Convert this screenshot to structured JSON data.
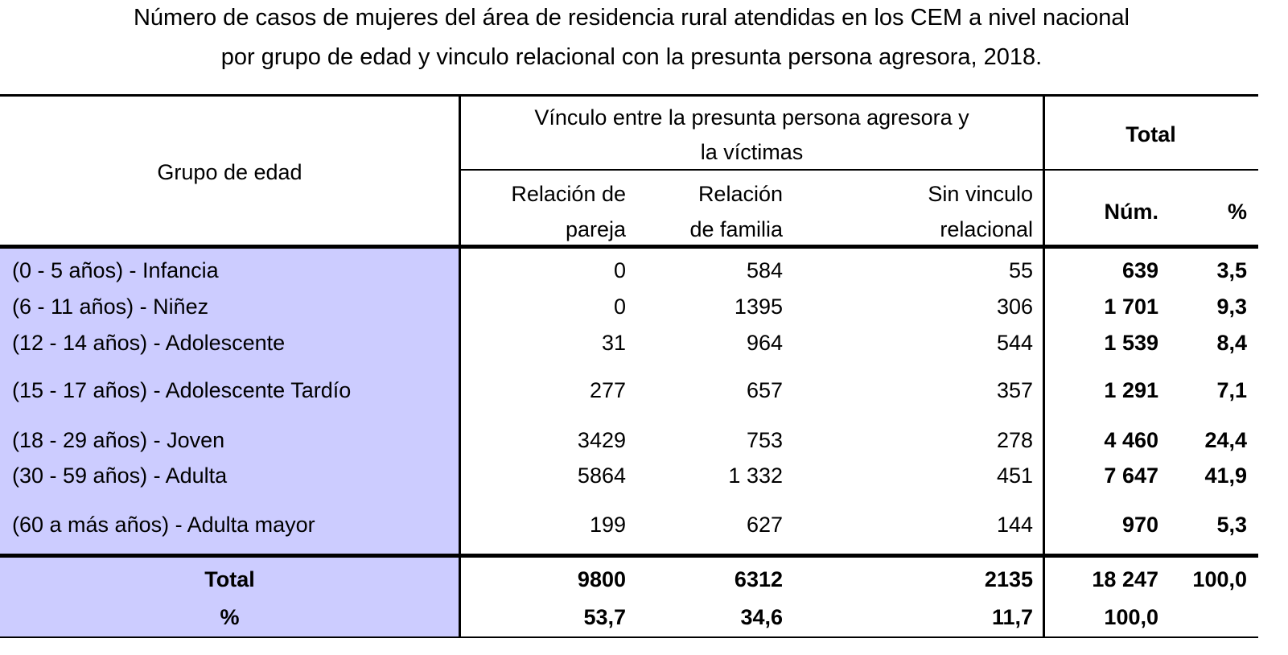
{
  "title_line1": "Número de casos de mujeres del área de residencia rural atendidas en los CEM a nivel nacional",
  "title_line2": "por grupo de edad y vinculo relacional con la presunta persona agresora, 2018.",
  "colors": {
    "row_header_fill": "#ccccff",
    "lines": "#000000"
  },
  "chart_data": {
    "type": "table",
    "header": {
      "group": "Grupo de edad",
      "vinculo_line1": "Vínculo entre la presunta persona agresora y",
      "vinculo_line2": "la víctimas",
      "total": "Total",
      "col_pareja_1": "Relación de",
      "col_pareja_2": "pareja",
      "col_familia_1": "Relación",
      "col_familia_2": "de familia",
      "col_sin_1": "Sin vinculo",
      "col_sin_2": "relacional",
      "col_num": "Núm.",
      "col_pct": "%"
    },
    "rows": [
      {
        "group": "(0 - 5 años) - Infancia",
        "pareja": "0",
        "familia": "584",
        "sin": "55",
        "num": "639",
        "pct": "3,5"
      },
      {
        "group": "(6 - 11 años) - Niñez",
        "pareja": "0",
        "familia": "1395",
        "sin": "306",
        "num": "1 701",
        "pct": "9,3"
      },
      {
        "group": "(12 - 14 años) - Adolescente",
        "pareja": "31",
        "familia": "964",
        "sin": "544",
        "num": "1 539",
        "pct": "8,4"
      },
      {
        "group": "(15 - 17 años) - Adolescente Tardío",
        "pareja": "277",
        "familia": "657",
        "sin": "357",
        "num": "1 291",
        "pct": "7,1"
      },
      {
        "group": "(18 - 29 años) - Joven",
        "pareja": "3429",
        "familia": "753",
        "sin": "278",
        "num": "4 460",
        "pct": "24,4"
      },
      {
        "group": "(30 - 59 años) - Adulta",
        "pareja": "5864",
        "familia": "1 332",
        "sin": "451",
        "num": "7 647",
        "pct": "41,9"
      },
      {
        "group": "(60 a más años) - Adulta mayor",
        "pareja": "199",
        "familia": "627",
        "sin": "144",
        "num": "970",
        "pct": "5,3"
      }
    ],
    "total_row": {
      "group": "Total",
      "pareja": "9800",
      "familia": "6312",
      "sin": "2135",
      "num": "18 247",
      "pct": "100,0"
    },
    "pct_row": {
      "group": "%",
      "pareja": "53,7",
      "familia": "34,6",
      "sin": "11,7",
      "num": "100,0"
    }
  }
}
